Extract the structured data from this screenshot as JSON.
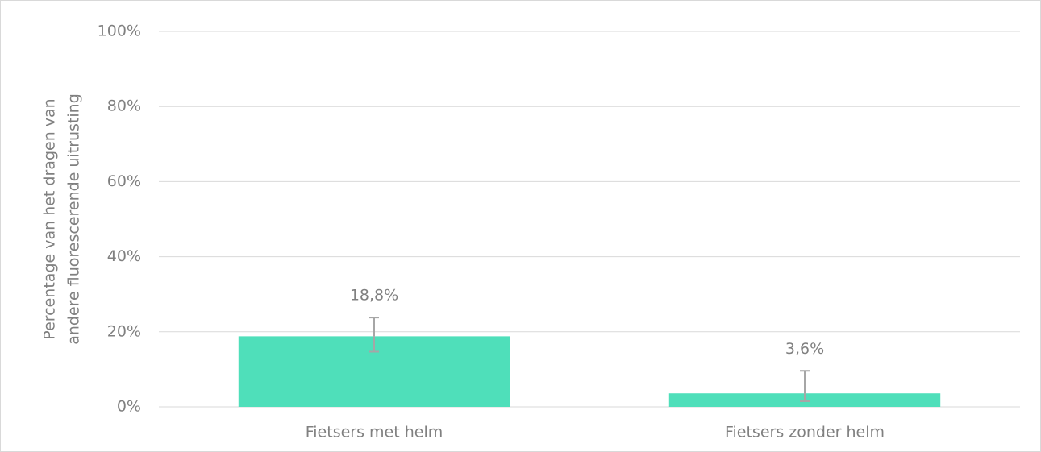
{
  "chart_data": {
    "type": "bar",
    "ylabel": [
      "Percentage van het dragen van",
      "andere fluorescerende uitrusting"
    ],
    "categories": [
      "Fietsers met helm",
      "Fietsers zonder helm"
    ],
    "values": [
      18.8,
      3.6
    ],
    "value_labels": [
      "18,8%",
      "3,6%"
    ],
    "error_plus": [
      5.0,
      6.0
    ],
    "error_minus": [
      4.1,
      2.1
    ],
    "color": "#4fdfba",
    "error_color": "#a6a6a6",
    "ylim": [
      0,
      100
    ],
    "yticks": [
      {
        "value": 0,
        "label": "0%"
      },
      {
        "value": 20,
        "label": "20%"
      },
      {
        "value": 40,
        "label": "40%"
      },
      {
        "value": 60,
        "label": "60%"
      },
      {
        "value": 80,
        "label": "80%"
      },
      {
        "value": 100,
        "label": "100%"
      }
    ],
    "grid": true
  }
}
